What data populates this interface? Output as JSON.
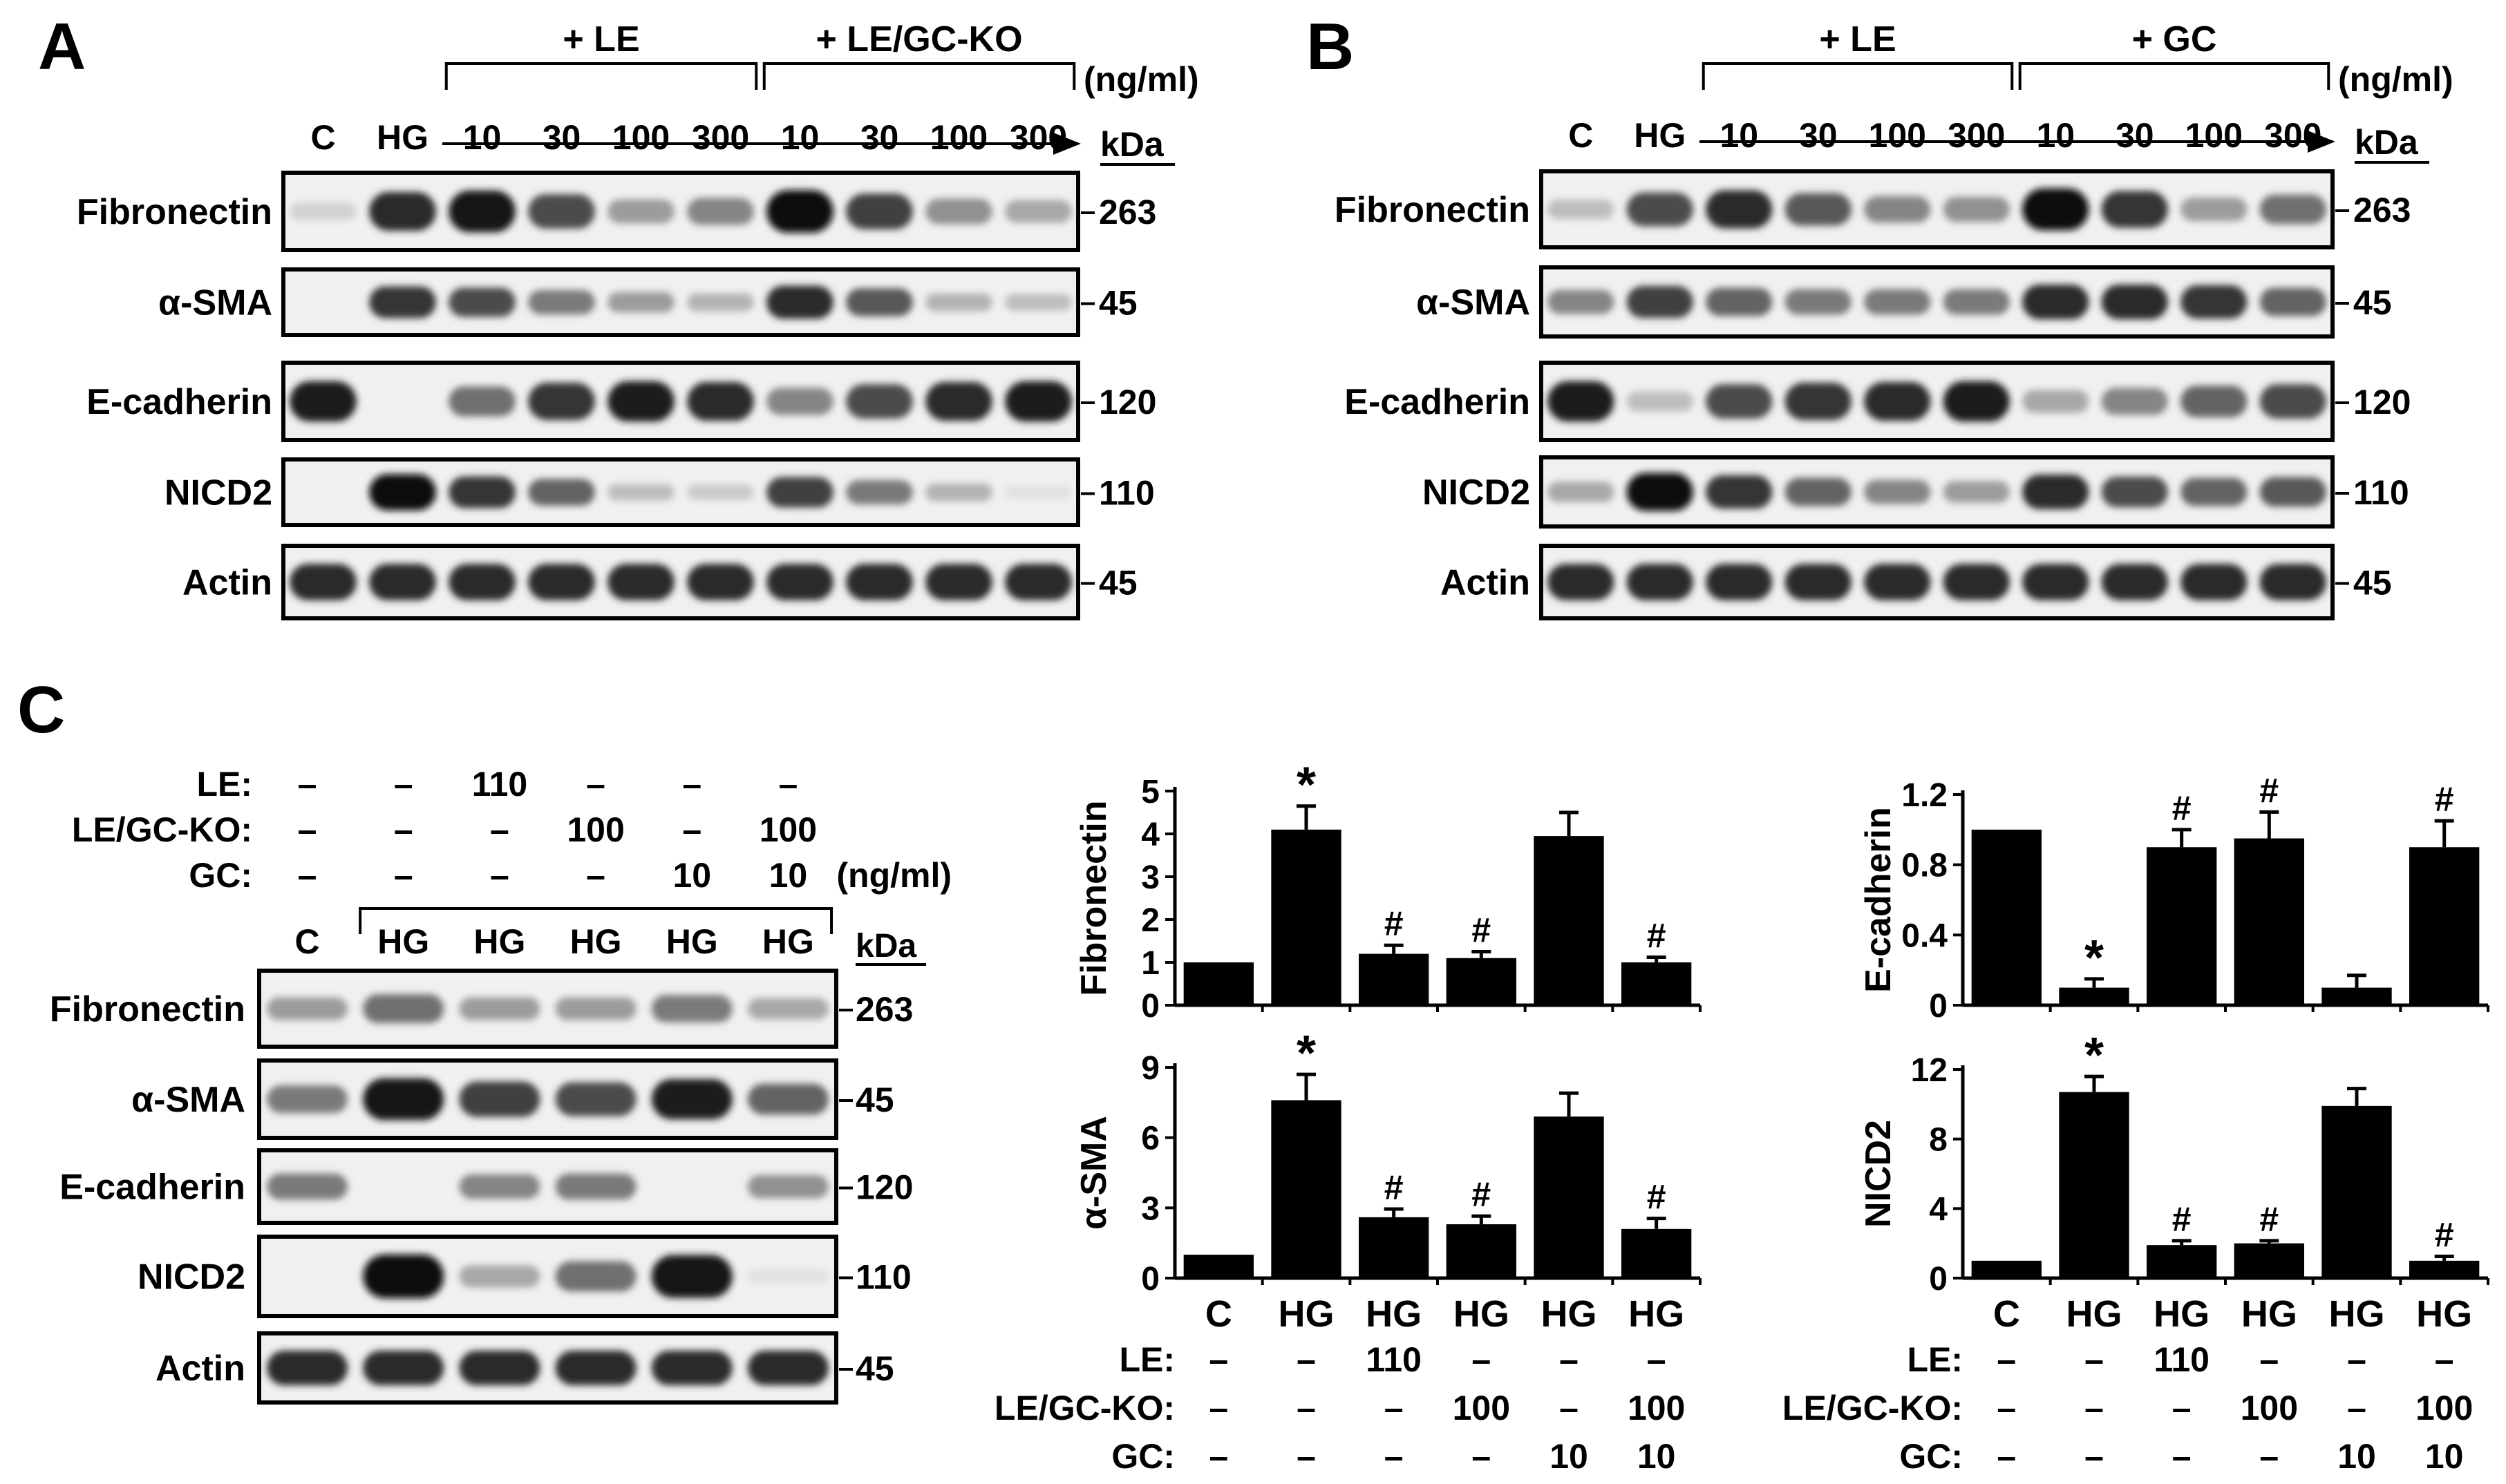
{
  "panels": {
    "A": {
      "letter": "A",
      "group1_label": "+ LE",
      "group2_label": "+ LE/GC-KO",
      "unit": "(ng/ml)",
      "lanes": [
        "C",
        "HG",
        "10",
        "30",
        "100",
        "300",
        "10",
        "30",
        "100",
        "300"
      ],
      "kda_label": "kDa",
      "blots": [
        {
          "label": "Fibronectin",
          "kda": "263",
          "intensity": [
            0.12,
            0.85,
            0.95,
            0.7,
            0.35,
            0.45,
            0.98,
            0.75,
            0.4,
            0.3
          ]
        },
        {
          "label": "α-SMA",
          "kda": "45",
          "intensity": [
            0.0,
            0.8,
            0.7,
            0.5,
            0.35,
            0.25,
            0.85,
            0.65,
            0.25,
            0.2
          ]
        },
        {
          "label": "E-cadherin",
          "kda": "120",
          "intensity": [
            0.9,
            0.0,
            0.55,
            0.8,
            0.9,
            0.85,
            0.45,
            0.7,
            0.85,
            0.9
          ]
        },
        {
          "label": "NICD2",
          "kda": "110",
          "intensity": [
            0.0,
            0.98,
            0.8,
            0.6,
            0.2,
            0.15,
            0.75,
            0.5,
            0.25,
            0.05
          ]
        },
        {
          "label": "Actin",
          "kda": "45",
          "intensity": [
            0.85,
            0.85,
            0.85,
            0.85,
            0.85,
            0.85,
            0.85,
            0.85,
            0.85,
            0.85
          ]
        }
      ]
    },
    "B": {
      "letter": "B",
      "group1_label": "+ LE",
      "group2_label": "+ GC",
      "unit": "(ng/ml)",
      "lanes": [
        "C",
        "HG",
        "10",
        "30",
        "100",
        "300",
        "10",
        "30",
        "100",
        "300"
      ],
      "kda_label": "kDa",
      "blots": [
        {
          "label": "Fibronectin",
          "kda": "263",
          "intensity": [
            0.2,
            0.7,
            0.85,
            0.65,
            0.45,
            0.4,
            0.98,
            0.8,
            0.35,
            0.55
          ]
        },
        {
          "label": "α-SMA",
          "kda": "45",
          "intensity": [
            0.45,
            0.75,
            0.6,
            0.5,
            0.5,
            0.5,
            0.85,
            0.85,
            0.8,
            0.6
          ]
        },
        {
          "label": "E-cadherin",
          "kda": "120",
          "intensity": [
            0.9,
            0.2,
            0.7,
            0.8,
            0.85,
            0.9,
            0.3,
            0.45,
            0.6,
            0.7
          ]
        },
        {
          "label": "NICD2",
          "kda": "110",
          "intensity": [
            0.3,
            0.98,
            0.8,
            0.6,
            0.45,
            0.35,
            0.85,
            0.7,
            0.6,
            0.65
          ]
        },
        {
          "label": "Actin",
          "kda": "45",
          "intensity": [
            0.85,
            0.85,
            0.85,
            0.85,
            0.85,
            0.85,
            0.85,
            0.85,
            0.85,
            0.85
          ]
        }
      ]
    },
    "C": {
      "letter": "C",
      "treatment_rows": [
        {
          "label": "LE:",
          "values": [
            "–",
            "–",
            "110",
            "–",
            "–",
            "–"
          ]
        },
        {
          "label": "LE/GC-KO:",
          "values": [
            "–",
            "–",
            "–",
            "100",
            "–",
            "100"
          ]
        },
        {
          "label": "GC:",
          "values": [
            "–",
            "–",
            "–",
            "–",
            "10",
            "10"
          ]
        }
      ],
      "unit": "(ng/ml)",
      "lanes": [
        "C",
        "HG",
        "HG",
        "HG",
        "HG",
        "HG"
      ],
      "kda_label": "kDa",
      "blots": [
        {
          "label": "Fibronectin",
          "kda": "263",
          "intensity": [
            0.35,
            0.55,
            0.35,
            0.35,
            0.5,
            0.3
          ]
        },
        {
          "label": "α-SMA",
          "kda": "45",
          "intensity": [
            0.5,
            0.95,
            0.75,
            0.7,
            0.9,
            0.6
          ]
        },
        {
          "label": "E-cadherin",
          "kda": "120",
          "intensity": [
            0.5,
            0.0,
            0.45,
            0.5,
            0.0,
            0.4
          ]
        },
        {
          "label": "NICD2",
          "kda": "110",
          "intensity": [
            0.0,
            0.98,
            0.3,
            0.55,
            0.95,
            0.05
          ]
        },
        {
          "label": "Actin",
          "kda": "45",
          "intensity": [
            0.85,
            0.85,
            0.85,
            0.85,
            0.85,
            0.85
          ]
        }
      ]
    }
  },
  "bar_treatments": [
    {
      "label": "LE:",
      "values": [
        "–",
        "–",
        "110",
        "–",
        "–",
        "–"
      ]
    },
    {
      "label": "LE/GC-KO:",
      "values": [
        "–",
        "–",
        "–",
        "100",
        "–",
        "100"
      ]
    },
    {
      "label": "GC:",
      "values": [
        "–",
        "–",
        "–",
        "–",
        "10",
        "10"
      ]
    }
  ],
  "chart_data": [
    {
      "type": "bar",
      "id": "fibronectin",
      "ylabel": "Fibronectin",
      "categories": [
        "C",
        "HG",
        "HG",
        "HG",
        "HG",
        "HG"
      ],
      "values": [
        1.0,
        4.1,
        1.2,
        1.1,
        3.95,
        1.0
      ],
      "errors": [
        0.0,
        0.55,
        0.2,
        0.15,
        0.55,
        0.12
      ],
      "significance": [
        "",
        "*",
        "#",
        "#",
        "",
        "#"
      ],
      "ylim": [
        0,
        5
      ],
      "yticks": [
        0,
        1,
        2,
        3,
        4,
        5
      ],
      "ytick_labels": [
        "0",
        "1",
        "2",
        "3",
        "4",
        "5"
      ]
    },
    {
      "type": "bar",
      "id": "e-cadherin",
      "ylabel": "E-cadherin",
      "categories": [
        "C",
        "HG",
        "HG",
        "HG",
        "HG",
        "HG"
      ],
      "values": [
        1.0,
        0.1,
        0.9,
        0.95,
        0.1,
        0.9
      ],
      "errors": [
        0.0,
        0.05,
        0.1,
        0.15,
        0.07,
        0.15
      ],
      "significance": [
        "",
        "*",
        "#",
        "#",
        "",
        "#"
      ],
      "ylim": [
        0,
        1.2
      ],
      "yticks": [
        0,
        0.4,
        0.8,
        1.2
      ],
      "ytick_labels": [
        "0",
        "0.4",
        "0.8",
        "1.2"
      ]
    },
    {
      "type": "bar",
      "id": "alpha-sma",
      "ylabel": "α-SMA",
      "categories": [
        "C",
        "HG",
        "HG",
        "HG",
        "HG",
        "HG"
      ],
      "values": [
        1.0,
        7.6,
        2.6,
        2.3,
        6.9,
        2.1
      ],
      "errors": [
        0.0,
        1.1,
        0.35,
        0.35,
        1.0,
        0.45
      ],
      "significance": [
        "",
        "*",
        "#",
        "#",
        "",
        "#"
      ],
      "ylim": [
        0,
        9
      ],
      "yticks": [
        0,
        3,
        6,
        9
      ],
      "ytick_labels": [
        "0",
        "3",
        "6",
        "9"
      ]
    },
    {
      "type": "bar",
      "id": "nicd2",
      "ylabel": "NICD2",
      "categories": [
        "C",
        "HG",
        "HG",
        "HG",
        "HG",
        "HG"
      ],
      "values": [
        1.0,
        10.7,
        1.9,
        2.0,
        9.9,
        1.0
      ],
      "errors": [
        0.0,
        0.9,
        0.25,
        0.15,
        1.0,
        0.25
      ],
      "significance": [
        "",
        "*",
        "#",
        "#",
        "",
        "#"
      ],
      "ylim": [
        0,
        12
      ],
      "yticks": [
        0,
        4,
        8,
        12
      ],
      "ytick_labels": [
        "0",
        "4",
        "8",
        "12"
      ]
    }
  ]
}
